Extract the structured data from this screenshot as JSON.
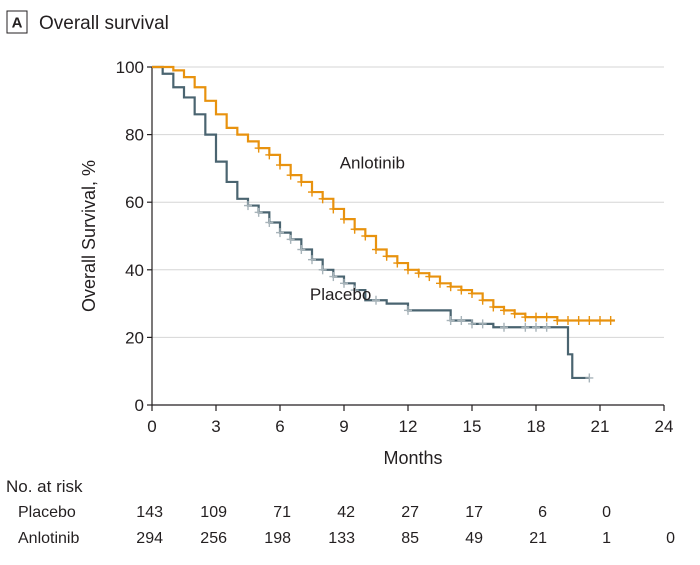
{
  "panel": {
    "letter": "A",
    "title": "Overall survival"
  },
  "chart_data": {
    "type": "line",
    "title": "Overall survival",
    "xlabel": "Months",
    "ylabel": "Overall Survival, %",
    "xlim": [
      0,
      24
    ],
    "ylim": [
      0,
      100
    ],
    "xticks": [
      0,
      3,
      6,
      9,
      12,
      15,
      18,
      21,
      24
    ],
    "yticks": [
      0,
      20,
      40,
      60,
      80,
      100
    ],
    "grid": "horizontal",
    "series": [
      {
        "name": "Anlotinib",
        "color": "#e8920e",
        "x": [
          0,
          0.5,
          1.0,
          1.5,
          2.0,
          2.5,
          3.0,
          3.5,
          4.0,
          4.5,
          5.0,
          5.5,
          6.0,
          6.5,
          7.0,
          7.5,
          8.0,
          8.5,
          9.0,
          9.5,
          10.0,
          10.5,
          11.0,
          11.5,
          12.0,
          12.5,
          13.0,
          13.5,
          14.0,
          14.5,
          15.0,
          15.5,
          16.0,
          16.5,
          17.0,
          17.5,
          18.0,
          19.0,
          20.0,
          21.0,
          21.7
        ],
        "y": [
          100,
          100,
          99,
          97,
          94,
          90,
          86,
          82,
          80,
          78,
          76,
          74,
          71,
          68,
          66,
          63,
          61,
          58,
          55,
          52,
          50,
          46,
          44,
          42,
          40,
          39,
          38,
          36,
          35,
          34,
          33,
          31,
          29,
          28,
          27,
          26,
          26,
          25,
          25,
          25,
          25
        ],
        "censor_x": [
          5,
          5.5,
          6,
          6.5,
          7,
          7.5,
          8,
          8.5,
          9,
          9.5,
          10,
          10.5,
          11,
          11.5,
          12,
          12.5,
          13,
          13.5,
          14,
          14.5,
          15,
          15.5,
          16,
          16.5,
          17,
          17.5,
          18,
          18.5,
          19,
          19.5,
          20,
          20.5,
          21,
          21.5
        ]
      },
      {
        "name": "Placebo",
        "color": "#4a6470",
        "censor_color": "#a8b4ba",
        "x": [
          0,
          0.5,
          1.0,
          1.5,
          2.0,
          2.5,
          3.0,
          3.5,
          4.0,
          4.5,
          5.0,
          5.5,
          6.0,
          6.5,
          7.0,
          7.5,
          8.0,
          8.5,
          9.0,
          9.5,
          10.0,
          11.0,
          12.0,
          13.0,
          14.0,
          15.0,
          16.0,
          17.0,
          18.0,
          19.0,
          19.5,
          19.7,
          20.0,
          20.5
        ],
        "y": [
          100,
          98,
          94,
          91,
          86,
          80,
          72,
          66,
          61,
          59,
          57,
          54,
          51,
          49,
          46,
          43,
          40,
          38,
          36,
          34,
          31,
          30,
          28,
          28,
          25,
          24,
          23,
          23,
          23,
          23,
          15,
          8,
          8,
          8
        ],
        "censor_x": [
          4.5,
          5,
          5.5,
          6,
          6.5,
          7,
          7.5,
          8,
          8.5,
          9,
          9.5,
          10.5,
          12,
          14,
          14.5,
          15,
          15.5,
          16.5,
          17.5,
          18,
          18.5,
          20.5
        ]
      }
    ],
    "annotations": [
      {
        "text": "Anlotinib",
        "x": 8.8,
        "y": 70
      },
      {
        "text": "Placebo",
        "x": 7.4,
        "y": 31
      }
    ]
  },
  "risk_table": {
    "header": "No. at risk",
    "months": [
      0,
      3,
      6,
      9,
      12,
      15,
      18,
      21,
      24
    ],
    "rows": [
      {
        "label": "Placebo",
        "values": [
          "143",
          "109",
          "71",
          "42",
          "27",
          "17",
          "6",
          "0",
          ""
        ]
      },
      {
        "label": "Anlotinib",
        "values": [
          "294",
          "256",
          "198",
          "133",
          "85",
          "49",
          "21",
          "1",
          "0"
        ]
      }
    ]
  }
}
